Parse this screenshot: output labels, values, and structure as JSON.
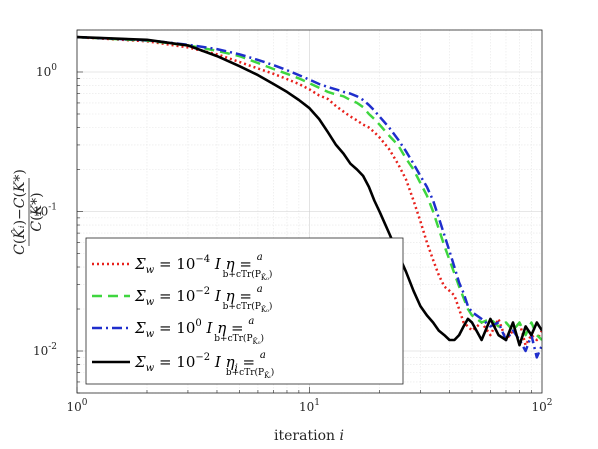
{
  "chart_data": {
    "type": "line",
    "xscale": "log",
    "yscale": "log",
    "xlim": [
      1,
      100
    ],
    "ylim": [
      0.005,
      2
    ],
    "xlabel": "iteration i",
    "ylabel": "(C(K̂i) − C(K*)) / C(K*)",
    "x_ticks": [
      1,
      10,
      100
    ],
    "x_tick_labels": [
      "10^0",
      "10^1",
      "10^2"
    ],
    "y_ticks": [
      0.01,
      0.1,
      1
    ],
    "y_tick_labels": [
      "10^-2",
      "10^-1",
      "10^0"
    ],
    "grid": true,
    "legend_position": "lower-left",
    "series": [
      {
        "name": "Σw = 10^-4 I  η = a / (b + c Tr(P_K̂0))",
        "color": "#e8211c",
        "dash": "dotted",
        "x": [
          1,
          2,
          3,
          4,
          5,
          6,
          7,
          8,
          9,
          10,
          11,
          12,
          13,
          14,
          15,
          16,
          17,
          18,
          19,
          20,
          22,
          24,
          26,
          28,
          30,
          32,
          34,
          36,
          38,
          40,
          42,
          44,
          46,
          48,
          50,
          55,
          60,
          65,
          70,
          75,
          80,
          85,
          90,
          95,
          100
        ],
        "y": [
          1.78,
          1.66,
          1.5,
          1.34,
          1.18,
          1.06,
          0.97,
          0.89,
          0.82,
          0.75,
          0.68,
          0.64,
          0.57,
          0.52,
          0.48,
          0.45,
          0.42,
          0.4,
          0.37,
          0.34,
          0.28,
          0.22,
          0.17,
          0.12,
          0.085,
          0.06,
          0.045,
          0.035,
          0.029,
          0.027,
          0.025,
          0.02,
          0.016,
          0.015,
          0.014,
          0.016,
          0.013,
          0.017,
          0.012,
          0.014,
          0.016,
          0.011,
          0.013,
          0.012,
          0.014
        ]
      },
      {
        "name": "Σw = 10^-2 I  η = a / (b + c Tr(P_K̂0))",
        "color": "#3fd63f",
        "dash": "dashed",
        "x": [
          1,
          2,
          3,
          4,
          5,
          6,
          7,
          8,
          9,
          10,
          11,
          12,
          13,
          14,
          15,
          16,
          17,
          18,
          19,
          20,
          22,
          24,
          26,
          28,
          30,
          32,
          34,
          36,
          38,
          40,
          42,
          44,
          46,
          48,
          50,
          55,
          60,
          65,
          70,
          75,
          80,
          85,
          90,
          95,
          100
        ],
        "y": [
          1.78,
          1.68,
          1.55,
          1.42,
          1.3,
          1.16,
          1.05,
          0.97,
          0.9,
          0.83,
          0.77,
          0.72,
          0.69,
          0.67,
          0.63,
          0.6,
          0.56,
          0.5,
          0.46,
          0.42,
          0.35,
          0.3,
          0.24,
          0.2,
          0.16,
          0.13,
          0.1,
          0.075,
          0.057,
          0.045,
          0.036,
          0.029,
          0.024,
          0.02,
          0.018,
          0.016,
          0.017,
          0.015,
          0.016,
          0.014,
          0.016,
          0.013,
          0.016,
          0.013,
          0.012
        ]
      },
      {
        "name": "Σw = 10^0 I  η = a / (b + c Tr(P_K̂0))",
        "color": "#1f2ecc",
        "dash": "dashdot",
        "x": [
          1,
          2,
          3,
          4,
          5,
          6,
          7,
          8,
          9,
          10,
          11,
          12,
          13,
          14,
          15,
          16,
          17,
          18,
          19,
          20,
          22,
          24,
          26,
          28,
          30,
          32,
          34,
          36,
          38,
          40,
          42,
          44,
          46,
          48,
          50,
          55,
          60,
          65,
          70,
          75,
          80,
          85,
          90,
          95,
          100
        ],
        "y": [
          1.78,
          1.69,
          1.57,
          1.46,
          1.34,
          1.22,
          1.12,
          1.03,
          0.95,
          0.88,
          0.82,
          0.78,
          0.75,
          0.72,
          0.7,
          0.67,
          0.63,
          0.58,
          0.53,
          0.48,
          0.4,
          0.33,
          0.27,
          0.22,
          0.18,
          0.15,
          0.12,
          0.09,
          0.068,
          0.052,
          0.04,
          0.031,
          0.026,
          0.021,
          0.019,
          0.017,
          0.015,
          0.016,
          0.012,
          0.014,
          0.012,
          0.01,
          0.013,
          0.009,
          0.011
        ]
      },
      {
        "name": "Σw = 10^-2 I  ηi = a / (b + c Tr(P_K̂i))",
        "color": "#000000",
        "dash": "solid",
        "x": [
          1,
          2,
          3,
          4,
          5,
          6,
          7,
          8,
          9,
          10,
          11,
          12,
          13,
          14,
          15,
          16,
          17,
          18,
          19,
          20,
          22,
          24,
          26,
          28,
          30,
          32,
          34,
          36,
          38,
          40,
          42,
          44,
          46,
          48,
          50,
          55,
          60,
          65,
          70,
          75,
          80,
          85,
          90,
          95,
          100
        ],
        "y": [
          1.78,
          1.7,
          1.55,
          1.3,
          1.1,
          0.95,
          0.82,
          0.72,
          0.63,
          0.55,
          0.46,
          0.37,
          0.3,
          0.26,
          0.22,
          0.2,
          0.18,
          0.15,
          0.12,
          0.1,
          0.07,
          0.05,
          0.037,
          0.027,
          0.021,
          0.018,
          0.016,
          0.014,
          0.013,
          0.012,
          0.012,
          0.013,
          0.015,
          0.017,
          0.016,
          0.012,
          0.017,
          0.013,
          0.012,
          0.016,
          0.011,
          0.015,
          0.013,
          0.016,
          0.014
        ]
      }
    ]
  }
}
